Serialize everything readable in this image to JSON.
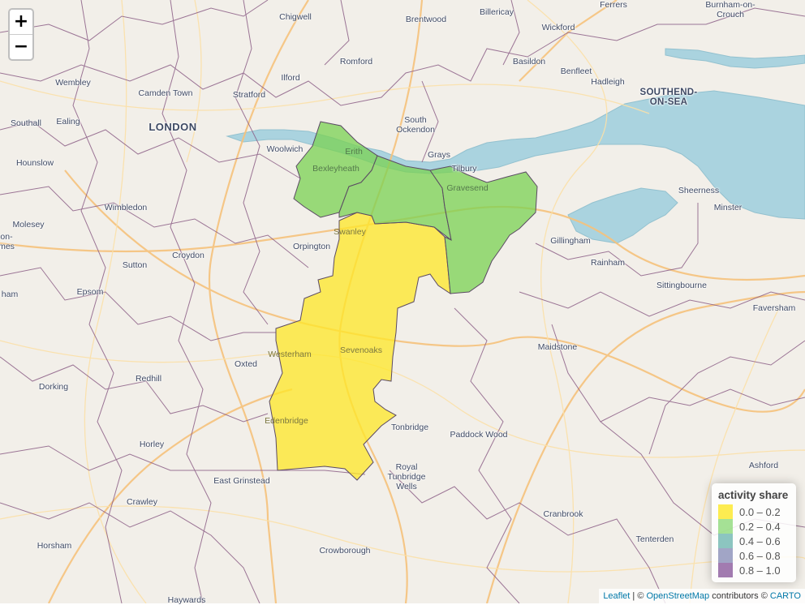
{
  "map": {
    "places": [
      {
        "id": "ferrers",
        "label": "Ferrers",
        "size": "normal"
      },
      {
        "id": "burnham",
        "label": "Burnham-on-\nCrouch",
        "size": "normal"
      },
      {
        "id": "chigwell",
        "label": "Chigwell",
        "size": "normal"
      },
      {
        "id": "brentwood",
        "label": "Brentwood",
        "size": "normal"
      },
      {
        "id": "billericay",
        "label": "Billericay",
        "size": "normal"
      },
      {
        "id": "wickford",
        "label": "Wickford",
        "size": "normal"
      },
      {
        "id": "romford",
        "label": "Romford",
        "size": "normal"
      },
      {
        "id": "basildon",
        "label": "Basildon",
        "size": "normal"
      },
      {
        "id": "benfleet",
        "label": "Benfleet",
        "size": "normal"
      },
      {
        "id": "hadleigh",
        "label": "Hadleigh",
        "size": "normal"
      },
      {
        "id": "southend",
        "label": "SOUTHEND-\nON-SEA",
        "size": "city"
      },
      {
        "id": "wembley",
        "label": "Wembley",
        "size": "normal"
      },
      {
        "id": "ilford",
        "label": "Ilford",
        "size": "normal"
      },
      {
        "id": "camden",
        "label": "Camden Town",
        "size": "normal"
      },
      {
        "id": "stratford",
        "label": "Stratford",
        "size": "normal"
      },
      {
        "id": "london",
        "label": "LONDON",
        "size": "big"
      },
      {
        "id": "southall",
        "label": "Southall",
        "size": "normal"
      },
      {
        "id": "ealing",
        "label": "Ealing",
        "size": "normal"
      },
      {
        "id": "southockendon",
        "label": "South\nOckendon",
        "size": "normal"
      },
      {
        "id": "woolwich",
        "label": "Woolwich",
        "size": "normal"
      },
      {
        "id": "erith",
        "label": "Erith",
        "size": "fill"
      },
      {
        "id": "grays",
        "label": "Grays",
        "size": "normal"
      },
      {
        "id": "hounslow",
        "label": "Hounslow",
        "size": "normal"
      },
      {
        "id": "bexleyheath",
        "label": "Bexleyheath",
        "size": "fill"
      },
      {
        "id": "tilbury",
        "label": "Tilbury",
        "size": "normal"
      },
      {
        "id": "gravesend",
        "label": "Gravesend",
        "size": "fill"
      },
      {
        "id": "sheerness",
        "label": "Sheerness",
        "size": "normal"
      },
      {
        "id": "wimbledon",
        "label": "Wimbledon",
        "size": "normal"
      },
      {
        "id": "minster",
        "label": "Minster",
        "size": "normal"
      },
      {
        "id": "molesey",
        "label": "Molesey",
        "size": "normal"
      },
      {
        "id": "swanley",
        "label": "Swanley",
        "size": "yellow"
      },
      {
        "id": "onmes",
        "label": "on-\nmes",
        "size": "normal"
      },
      {
        "id": "gillingham",
        "label": "Gillingham",
        "size": "normal"
      },
      {
        "id": "orpington",
        "label": "Orpington",
        "size": "normal"
      },
      {
        "id": "sutton",
        "label": "Sutton",
        "size": "normal"
      },
      {
        "id": "croydon",
        "label": "Croydon",
        "size": "normal"
      },
      {
        "id": "rainham",
        "label": "Rainham",
        "size": "normal"
      },
      {
        "id": "sittingbourne",
        "label": "Sittingbourne",
        "size": "normal"
      },
      {
        "id": "epsom",
        "label": "Epsom",
        "size": "normal"
      },
      {
        "id": "ham",
        "label": "ham",
        "size": "normal"
      },
      {
        "id": "faversham",
        "label": "Faversham",
        "size": "normal"
      },
      {
        "id": "maidstone",
        "label": "Maidstone",
        "size": "normal"
      },
      {
        "id": "westerham",
        "label": "Westerham",
        "size": "yellow"
      },
      {
        "id": "sevenoaks",
        "label": "Sevenoaks",
        "size": "yellow"
      },
      {
        "id": "oxted",
        "label": "Oxted",
        "size": "normal"
      },
      {
        "id": "redhill",
        "label": "Redhill",
        "size": "normal"
      },
      {
        "id": "dorking",
        "label": "Dorking",
        "size": "normal"
      },
      {
        "id": "edenbridge",
        "label": "Edenbridge",
        "size": "yellow"
      },
      {
        "id": "tonbridge",
        "label": "Tonbridge",
        "size": "normal"
      },
      {
        "id": "paddockwood",
        "label": "Paddock Wood",
        "size": "normal"
      },
      {
        "id": "horley",
        "label": "Horley",
        "size": "normal"
      },
      {
        "id": "ashford",
        "label": "Ashford",
        "size": "normal"
      },
      {
        "id": "eastgrinstead",
        "label": "East Grinstead",
        "size": "normal"
      },
      {
        "id": "tunbridgewells",
        "label": "Royal\nTunbridge\nWells",
        "size": "normal"
      },
      {
        "id": "crawley",
        "label": "Crawley",
        "size": "normal"
      },
      {
        "id": "cranbrook",
        "label": "Cranbrook",
        "size": "normal"
      },
      {
        "id": "tenterden",
        "label": "Tenterden",
        "size": "normal"
      },
      {
        "id": "horsham",
        "label": "Horsham",
        "size": "normal"
      },
      {
        "id": "crowborough",
        "label": "Crowborough",
        "size": "normal"
      },
      {
        "id": "haywards",
        "label": "Haywards",
        "size": "normal"
      }
    ],
    "regions": [
      {
        "id": "sevenoaks",
        "class": "0.0 – 0.2",
        "color": "#fde725"
      },
      {
        "id": "bexley",
        "class": "0.2 – 0.4",
        "color": "#7ad151"
      },
      {
        "id": "dartford",
        "class": "0.2 – 0.4",
        "color": "#7ad151"
      },
      {
        "id": "gravesham",
        "class": "0.2 – 0.4",
        "color": "#7ad151"
      }
    ]
  },
  "zoom": {
    "in_label": "+",
    "out_label": "−"
  },
  "legend": {
    "title": "activity share",
    "items": [
      {
        "label": "0.0 – 0.2",
        "color": "#fde725"
      },
      {
        "label": "0.2 – 0.4",
        "color": "#8fd97a"
      },
      {
        "label": "0.4 – 0.6",
        "color": "#6fb7b0"
      },
      {
        "label": "0.6 – 0.8",
        "color": "#8a8fb8"
      },
      {
        "label": "0.8 – 1.0",
        "color": "#8b5a9c"
      }
    ]
  },
  "attribution": {
    "leaflet": "Leaflet",
    "sep": " | © ",
    "osm": "OpenStreetMap",
    "contributors": " contributors © ",
    "carto": "CARTO"
  }
}
